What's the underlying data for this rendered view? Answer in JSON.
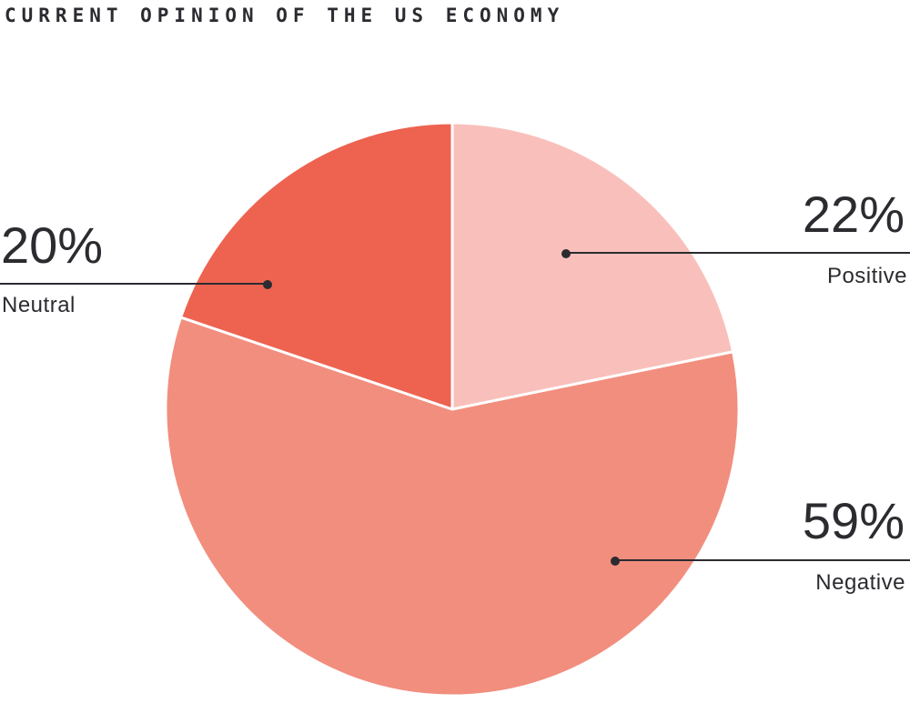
{
  "header": {
    "title": "CURRENT OPINION OF THE US ECONOMY"
  },
  "chart_data": {
    "type": "pie",
    "title": "CURRENT OPINION OF THE US ECONOMY",
    "unit": "%",
    "start_angle_deg": 0,
    "direction": "clockwise",
    "slices": [
      {
        "label": "Positive",
        "value": 22,
        "value_label": "22%",
        "color": "#F9C0BB"
      },
      {
        "label": "Negative",
        "value": 59,
        "value_label": "59%",
        "color": "#F28E7E"
      },
      {
        "label": "Neutral",
        "value": 20,
        "value_label": "20%",
        "color": "#ED6350"
      }
    ],
    "slice_divider_color": "#FFFFFF",
    "callout_line_color": "#2B2B30",
    "text_color": "#2B2B30",
    "legend_position": "callouts"
  }
}
